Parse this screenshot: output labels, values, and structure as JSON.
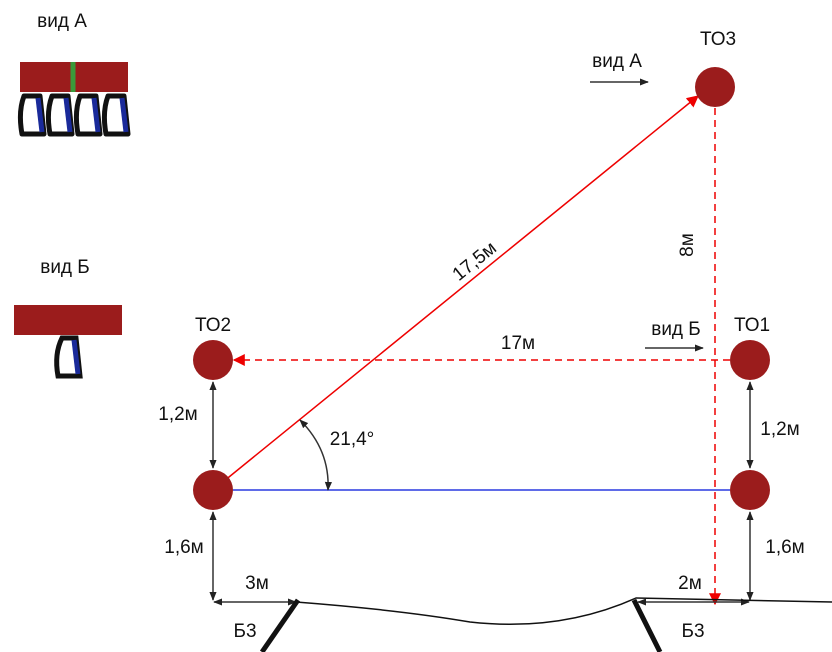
{
  "views": {
    "a_title": "вид А",
    "b_title": "вид Б"
  },
  "nodes": {
    "to3": "ТО3",
    "to2": "ТО2",
    "to1": "ТО1",
    "b3_left": "Б3",
    "b3_right": "Б3"
  },
  "arrows": {
    "view_a": "вид А",
    "view_b": "вид Б"
  },
  "dimensions": {
    "diagonal": "17,5м",
    "vertical": "8м",
    "horizontal": "17м",
    "left_upper": "1,2м",
    "right_upper": "1,2м",
    "angle": "21,4°",
    "left_lower": "1,6м",
    "right_lower": "1,6м",
    "left_offset": "3м",
    "right_offset": "2м"
  }
}
